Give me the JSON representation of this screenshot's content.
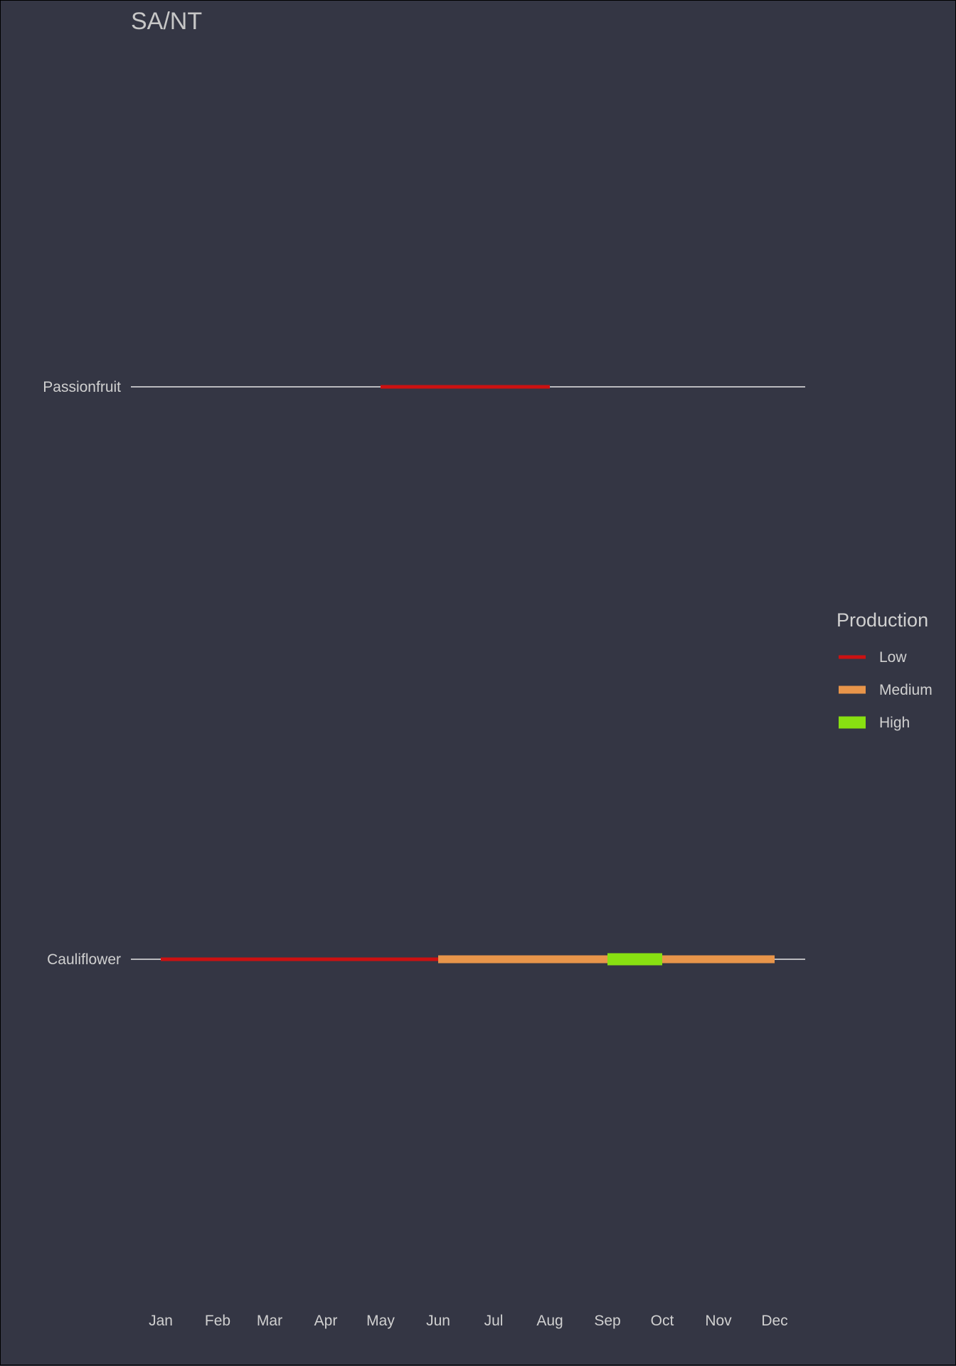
{
  "chart_data": {
    "type": "gantt",
    "title": "SA/NT",
    "xlabel": "",
    "ylabel": "",
    "grid": false,
    "background_color": "#343644",
    "months": [
      "Jan",
      "Feb",
      "Mar",
      "Apr",
      "May",
      "Jun",
      "Jul",
      "Aug",
      "Sep",
      "Oct",
      "Nov",
      "Dec"
    ],
    "rows": [
      {
        "name": "Passionfruit",
        "segments": [
          {
            "level": "Low",
            "start": "May",
            "end": "Aug"
          }
        ]
      },
      {
        "name": "Cauliflower",
        "segments": [
          {
            "level": "Low",
            "start": "Jan",
            "end": "Jun"
          },
          {
            "level": "Medium",
            "start": "Jun",
            "end": "Sep"
          },
          {
            "level": "High",
            "start": "Sep",
            "end": "Oct"
          },
          {
            "level": "Medium",
            "start": "Oct",
            "end": "Dec"
          }
        ]
      }
    ],
    "legend": {
      "title": "Production",
      "position": "right",
      "items": [
        {
          "label": "Low",
          "color": "#cc1111"
        },
        {
          "label": "Medium",
          "color": "#e8954a"
        },
        {
          "label": "High",
          "color": "#88e011"
        }
      ]
    }
  }
}
